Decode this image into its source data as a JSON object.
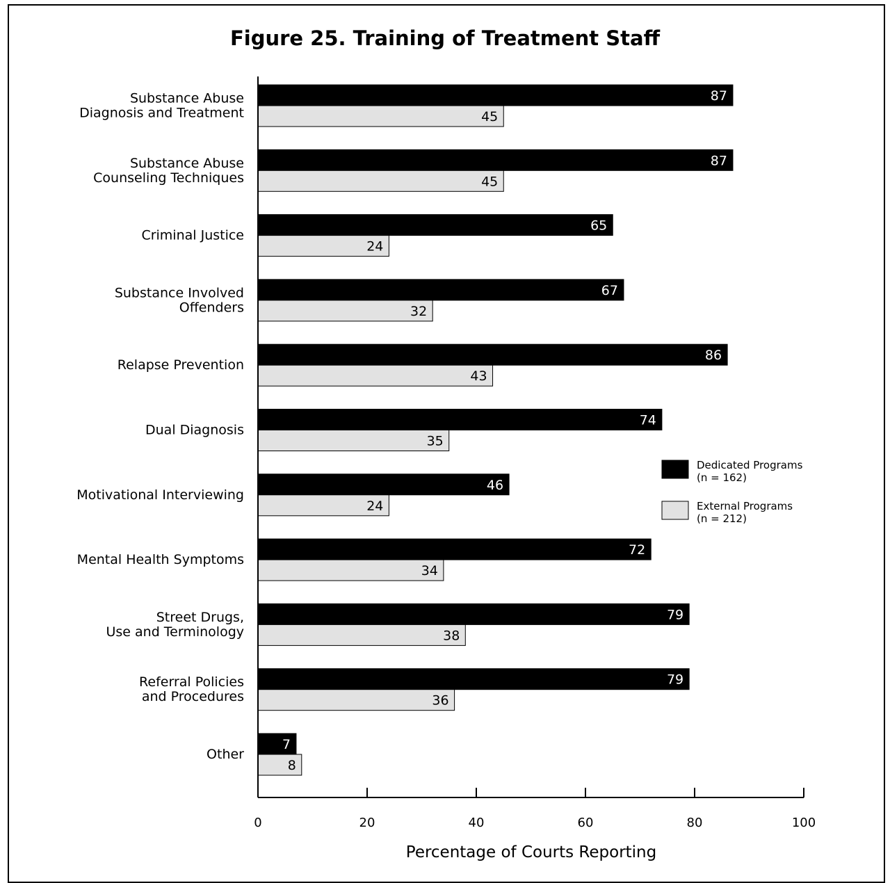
{
  "chart_data": {
    "type": "bar",
    "orientation": "horizontal",
    "title": "Figure 25. Training of Treatment Staff",
    "xlabel": "Percentage of Courts Reporting",
    "ylabel": "",
    "xlim": [
      0,
      100
    ],
    "xticks": [
      "0",
      "20",
      "40",
      "60",
      "80",
      "100"
    ],
    "grid": false,
    "legend_position": "right",
    "categories": [
      [
        "Substance Abuse",
        "Diagnosis and Treatment"
      ],
      [
        "Substance Abuse",
        "Counseling Techniques"
      ],
      [
        "Criminal Justice"
      ],
      [
        "Substance Involved",
        "Offenders"
      ],
      [
        "Relapse Prevention"
      ],
      [
        "Dual Diagnosis"
      ],
      [
        "Motivational Interviewing"
      ],
      [
        "Mental Health Symptoms"
      ],
      [
        "Street Drugs,",
        "Use and Terminology"
      ],
      [
        "Referral Policies",
        "and Procedures"
      ],
      [
        "Other"
      ]
    ],
    "series": [
      {
        "name": "Dedicated Programs",
        "n_label": "(n = 162)",
        "color": "#000000",
        "label_color": "#ffffff",
        "values": [
          87,
          87,
          65,
          67,
          86,
          74,
          46,
          72,
          79,
          79,
          7
        ]
      },
      {
        "name": "External Programs",
        "n_label": "(n = 212)",
        "color": "#e2e2e2",
        "label_color": "#000000",
        "values": [
          45,
          45,
          24,
          32,
          43,
          35,
          24,
          34,
          38,
          36,
          8
        ]
      }
    ]
  }
}
